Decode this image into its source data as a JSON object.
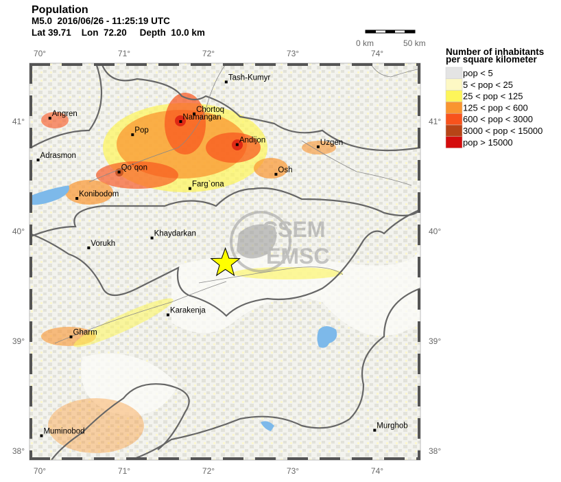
{
  "header": {
    "title": "Population",
    "event": "M5.0  2016/06/26 - 11:25:19 UTC",
    "location": "Lat 39.71    Lon  72.20     Depth  10.0 km"
  },
  "scale_bar": {
    "start_label": "0 km",
    "end_label": "50 km"
  },
  "axes": {
    "lon_ticks": [
      "70°",
      "71°",
      "72°",
      "73°",
      "74°"
    ],
    "lat_ticks": [
      "41°",
      "40°",
      "39°",
      "38°"
    ],
    "lon_range": [
      69.88,
      74.5
    ],
    "lat_range": [
      37.9,
      41.53
    ]
  },
  "epicenter": {
    "lat": 39.71,
    "lon": 72.2,
    "marker": "star-icon",
    "color": "#ffff00"
  },
  "cities": [
    {
      "name": "Tash-Kumyr",
      "lon": 72.21,
      "lat": 41.36
    },
    {
      "name": "Chortoq",
      "lon": 71.83,
      "lat": 41.07
    },
    {
      "name": "Namangan",
      "lon": 71.67,
      "lat": 41.0
    },
    {
      "name": "Pop",
      "lon": 71.1,
      "lat": 40.88
    },
    {
      "name": "Angren",
      "lon": 70.12,
      "lat": 41.03
    },
    {
      "name": "Andijon",
      "lon": 72.34,
      "lat": 40.79
    },
    {
      "name": "Uzgen",
      "lon": 73.3,
      "lat": 40.77
    },
    {
      "name": "Adrasmon",
      "lon": 69.98,
      "lat": 40.65
    },
    {
      "name": "Qo`qon",
      "lon": 70.94,
      "lat": 40.54
    },
    {
      "name": "Osh",
      "lon": 72.8,
      "lat": 40.52
    },
    {
      "name": "Farg`ona",
      "lon": 71.78,
      "lat": 40.39
    },
    {
      "name": "Konibodom",
      "lon": 70.44,
      "lat": 40.3
    },
    {
      "name": "Khaydarkan",
      "lon": 71.33,
      "lat": 39.94
    },
    {
      "name": "Vorukh",
      "lon": 70.58,
      "lat": 39.85
    },
    {
      "name": "Karakenja",
      "lon": 71.52,
      "lat": 39.24
    },
    {
      "name": "Gharm",
      "lon": 70.37,
      "lat": 39.04
    },
    {
      "name": "Murghob",
      "lon": 73.97,
      "lat": 38.19
    },
    {
      "name": "Muminobod",
      "lon": 70.02,
      "lat": 38.14
    }
  ],
  "legend": {
    "title_line1": "Number of inhabitants",
    "title_line2": "per square kilometer",
    "items": [
      {
        "label": "pop < 5",
        "color": "#e4e4e4"
      },
      {
        "label": "5 < pop < 25",
        "color": "#fdf8c4"
      },
      {
        "label": "25 < pop < 125",
        "color": "#fdf55a"
      },
      {
        "label": "125 < pop < 600",
        "color": "#f99530"
      },
      {
        "label": "600 < pop < 3000",
        "color": "#f8521c"
      },
      {
        "label": "3000 < pop < 15000",
        "color": "#b74417"
      },
      {
        "label": "pop > 15000",
        "color": "#d40c0c"
      }
    ]
  },
  "watermark": {
    "line1": "CSEM",
    "line2": "EMSC"
  },
  "colors": {
    "water": "#7db9ea",
    "border": "#666666",
    "ground": "#e6e6de"
  }
}
